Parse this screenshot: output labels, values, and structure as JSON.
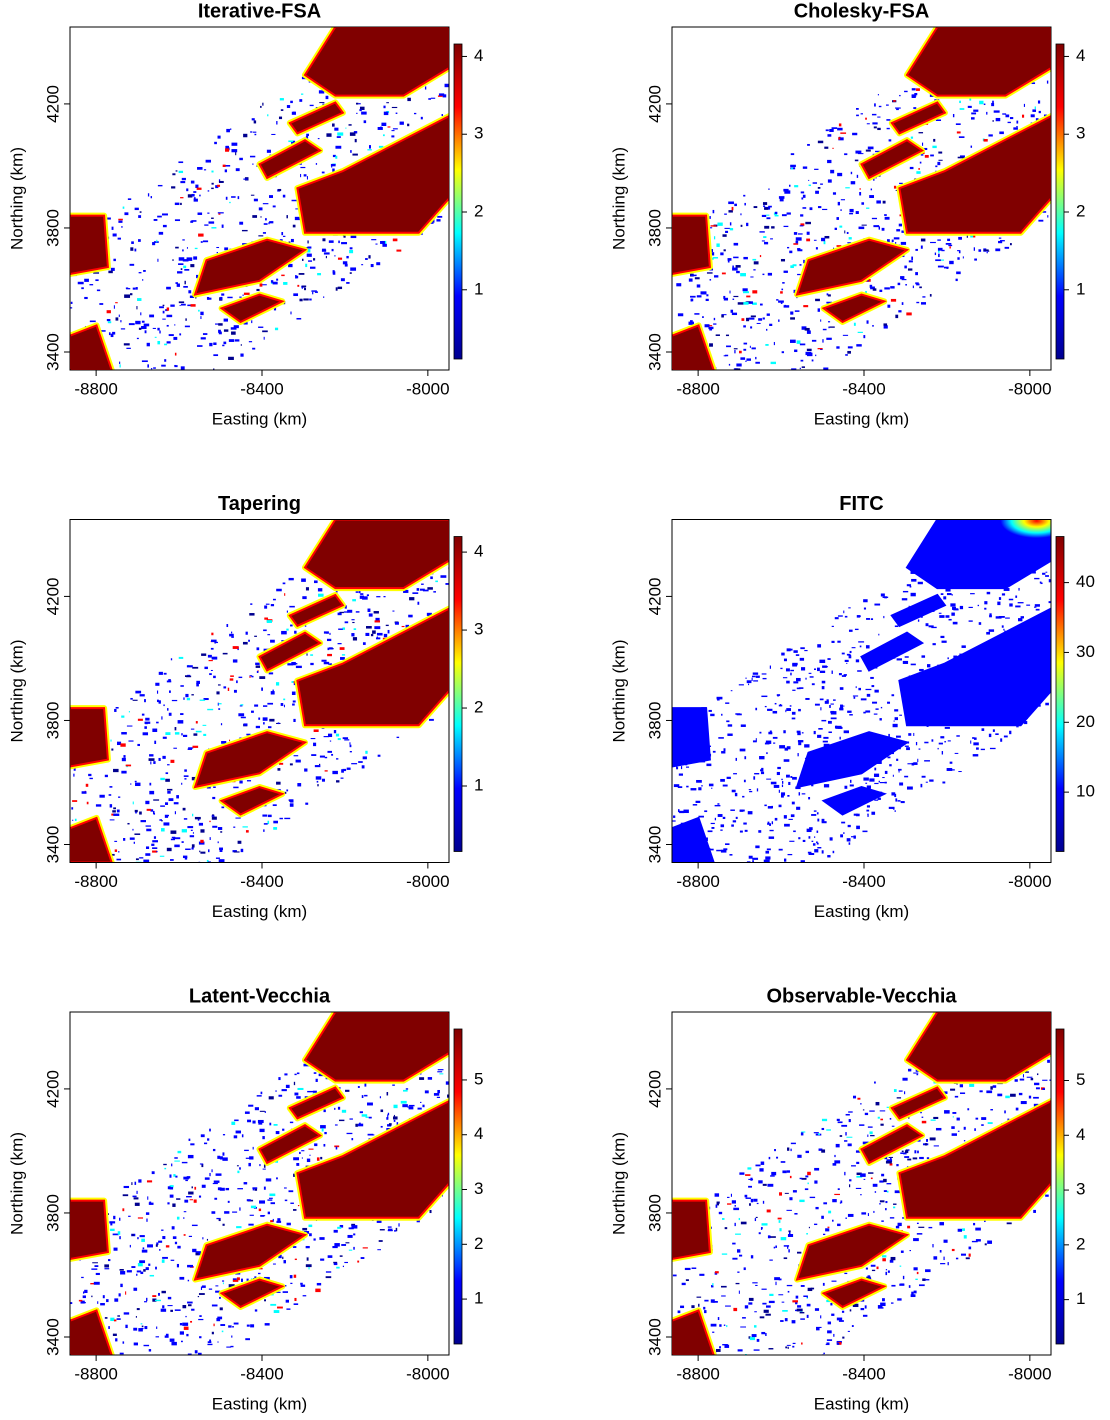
{
  "chart_data": [
    {
      "type": "heatmap",
      "title": "Iterative-FSA",
      "xlabel": "Easting (km)",
      "ylabel": "Northing (km)",
      "xlim": [
        -8863,
        -7949
      ],
      "ylim": [
        3342,
        4448
      ],
      "xticks": [
        -8800,
        -8400,
        -8000
      ],
      "yticks": [
        3400,
        3800,
        4200
      ],
      "clim": [
        0.11,
        4.16
      ],
      "cticks": [
        1,
        2,
        3,
        4
      ],
      "colors": [
        "#00008f",
        "#0000ff",
        "#00ffff",
        "#ffff00",
        "#ff0000",
        "#800000"
      ]
    },
    {
      "type": "heatmap",
      "title": "Cholesky-FSA",
      "xlabel": "Easting (km)",
      "ylabel": "Northing (km)",
      "xlim": [
        -8863,
        -7949
      ],
      "ylim": [
        3342,
        4448
      ],
      "xticks": [
        -8800,
        -8400,
        -8000
      ],
      "yticks": [
        3400,
        3800,
        4200
      ],
      "clim": [
        0.11,
        4.16
      ],
      "cticks": [
        1,
        2,
        3,
        4
      ],
      "colors": [
        "#00008f",
        "#0000ff",
        "#00ffff",
        "#ffff00",
        "#ff0000",
        "#800000"
      ]
    },
    {
      "type": "heatmap",
      "title": "Tapering",
      "xlabel": "Easting (km)",
      "ylabel": "Northing (km)",
      "xlim": [
        -8863,
        -7949
      ],
      "ylim": [
        3342,
        4448
      ],
      "xticks": [
        -8800,
        -8400,
        -8000
      ],
      "yticks": [
        3400,
        3800,
        4200
      ],
      "clim": [
        0.16,
        4.2
      ],
      "cticks": [
        1,
        2,
        3,
        4
      ],
      "colors": [
        "#00008f",
        "#0000ff",
        "#00ffff",
        "#ffff00",
        "#ff0000",
        "#800000"
      ]
    },
    {
      "type": "heatmap",
      "title": "FITC",
      "xlabel": "Easting (km)",
      "ylabel": "Northing (km)",
      "xlim": [
        -8863,
        -7949
      ],
      "ylim": [
        3342,
        4448
      ],
      "xticks": [
        -8800,
        -8400,
        -8000
      ],
      "yticks": [
        3400,
        3800,
        4200
      ],
      "clim": [
        1.5,
        46.6
      ],
      "cticks": [
        10,
        20,
        30,
        40
      ],
      "colors": [
        "#00008f",
        "#0000ff",
        "#00ffff",
        "#ffff00",
        "#ff0000",
        "#800000"
      ]
    },
    {
      "type": "heatmap",
      "title": "Latent-Vecchia",
      "xlabel": "Easting (km)",
      "ylabel": "Northing (km)",
      "xlim": [
        -8863,
        -7949
      ],
      "ylim": [
        3342,
        4448
      ],
      "xticks": [
        -8800,
        -8400,
        -8000
      ],
      "yticks": [
        3400,
        3800,
        4200
      ],
      "clim": [
        0.18,
        5.93
      ],
      "cticks": [
        1,
        2,
        3,
        4,
        5
      ],
      "colors": [
        "#00008f",
        "#0000ff",
        "#00ffff",
        "#ffff00",
        "#ff0000",
        "#800000"
      ]
    },
    {
      "type": "heatmap",
      "title": "Observable-Vecchia",
      "xlabel": "Easting (km)",
      "ylabel": "Northing (km)",
      "xlim": [
        -8863,
        -7949
      ],
      "ylim": [
        3342,
        4448
      ],
      "xticks": [
        -8800,
        -8400,
        -8000
      ],
      "yticks": [
        3400,
        3800,
        4200
      ],
      "clim": [
        0.19,
        5.94
      ],
      "cticks": [
        1,
        2,
        3,
        4,
        5
      ],
      "colors": [
        "#00008f",
        "#0000ff",
        "#00ffff",
        "#ffff00",
        "#ff0000",
        "#800000"
      ]
    }
  ]
}
